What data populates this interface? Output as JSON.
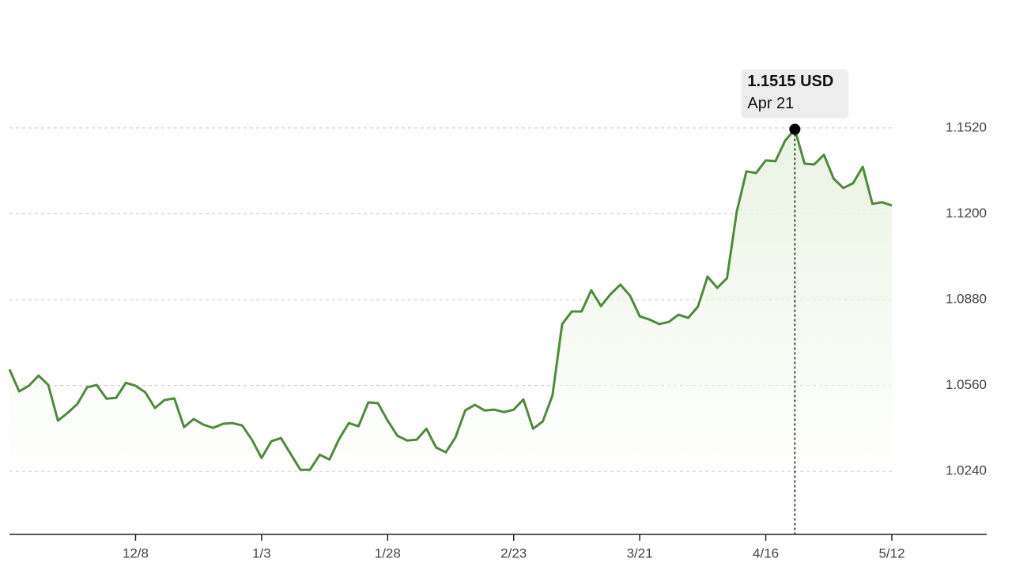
{
  "chart_data": {
    "type": "line",
    "categories": [
      null,
      null,
      null,
      null,
      null,
      null,
      null,
      null,
      null,
      null,
      null,
      null,
      null,
      "12/8",
      null,
      null,
      null,
      null,
      null,
      null,
      null,
      null,
      null,
      null,
      null,
      null,
      "1/3",
      null,
      null,
      null,
      null,
      null,
      null,
      null,
      null,
      null,
      null,
      null,
      null,
      "1/28",
      null,
      null,
      null,
      null,
      null,
      null,
      null,
      null,
      null,
      null,
      null,
      null,
      "2/23",
      null,
      null,
      null,
      null,
      null,
      null,
      null,
      null,
      null,
      null,
      null,
      null,
      "3/21",
      null,
      null,
      null,
      null,
      null,
      null,
      null,
      null,
      null,
      null,
      null,
      null,
      "4/16",
      null,
      null,
      null,
      null,
      null,
      null,
      null,
      null,
      null,
      null,
      null,
      null,
      "5/12"
    ],
    "series": [
      {
        "color": "#4f8a3c",
        "values": [
          1.062,
          1.0538,
          1.0559,
          1.0597,
          1.0562,
          1.0429,
          1.0458,
          1.0491,
          1.0553,
          1.0562,
          1.0511,
          1.0514,
          1.057,
          1.0559,
          1.0535,
          1.0476,
          1.0506,
          1.0512,
          1.0405,
          1.0435,
          1.0414,
          1.0402,
          1.0417,
          1.042,
          1.0411,
          1.0358,
          1.029,
          1.0352,
          1.0364,
          1.0305,
          1.0246,
          1.0246,
          1.0302,
          1.0284,
          1.0361,
          1.042,
          1.0408,
          1.0497,
          1.0494,
          1.0429,
          1.0373,
          1.0355,
          1.0358,
          1.0399,
          1.0329,
          1.0311,
          1.0367,
          1.0467,
          1.0488,
          1.0467,
          1.047,
          1.0461,
          1.047,
          1.0508,
          1.0399,
          1.0426,
          1.0523,
          1.0789,
          1.0836,
          1.0836,
          1.0915,
          1.0856,
          1.0901,
          1.0936,
          1.0895,
          1.0818,
          1.0806,
          1.0789,
          1.0797,
          1.0824,
          1.0812,
          1.0854,
          1.0966,
          1.0924,
          1.096,
          1.1207,
          1.1358,
          1.1352,
          1.1399,
          1.1396,
          1.1473,
          1.1515,
          1.1387,
          1.1384,
          1.142,
          1.1331,
          1.1296,
          1.1314,
          1.1375,
          1.1237,
          1.1243,
          1.1231
        ],
        "value_labels": [
          null,
          null,
          null,
          null,
          null,
          null,
          null,
          null,
          null,
          null,
          null,
          null,
          null,
          null,
          null,
          null,
          null,
          null,
          null,
          null,
          null,
          null,
          null,
          null,
          null,
          null,
          null,
          null,
          null,
          null,
          null,
          null,
          null,
          null,
          null,
          null,
          null,
          null,
          null,
          null,
          null,
          null,
          null,
          null,
          null,
          null,
          null,
          null,
          null,
          null,
          null,
          null,
          null,
          null,
          null,
          null,
          null,
          null,
          null,
          null,
          null,
          null,
          null,
          null,
          null,
          null,
          null,
          null,
          null,
          null,
          null,
          null,
          null,
          null,
          null,
          null,
          null,
          null,
          null,
          null,
          null,
          "1.1515 USD",
          null,
          null,
          null,
          null,
          null,
          null,
          null,
          null,
          null,
          null
        ]
      }
    ],
    "hover_date": "Apr 21",
    "ylim": [
      1.0005,
      1.182
    ],
    "yticks": [
      {
        "value": 1.024,
        "label": "1.0240"
      },
      {
        "value": 1.056,
        "label": "1.0560"
      },
      {
        "value": 1.088,
        "label": "1.0880"
      },
      {
        "value": 1.12,
        "label": "1.1200"
      },
      {
        "value": 1.152,
        "label": "1.1520"
      }
    ],
    "grid": true
  }
}
